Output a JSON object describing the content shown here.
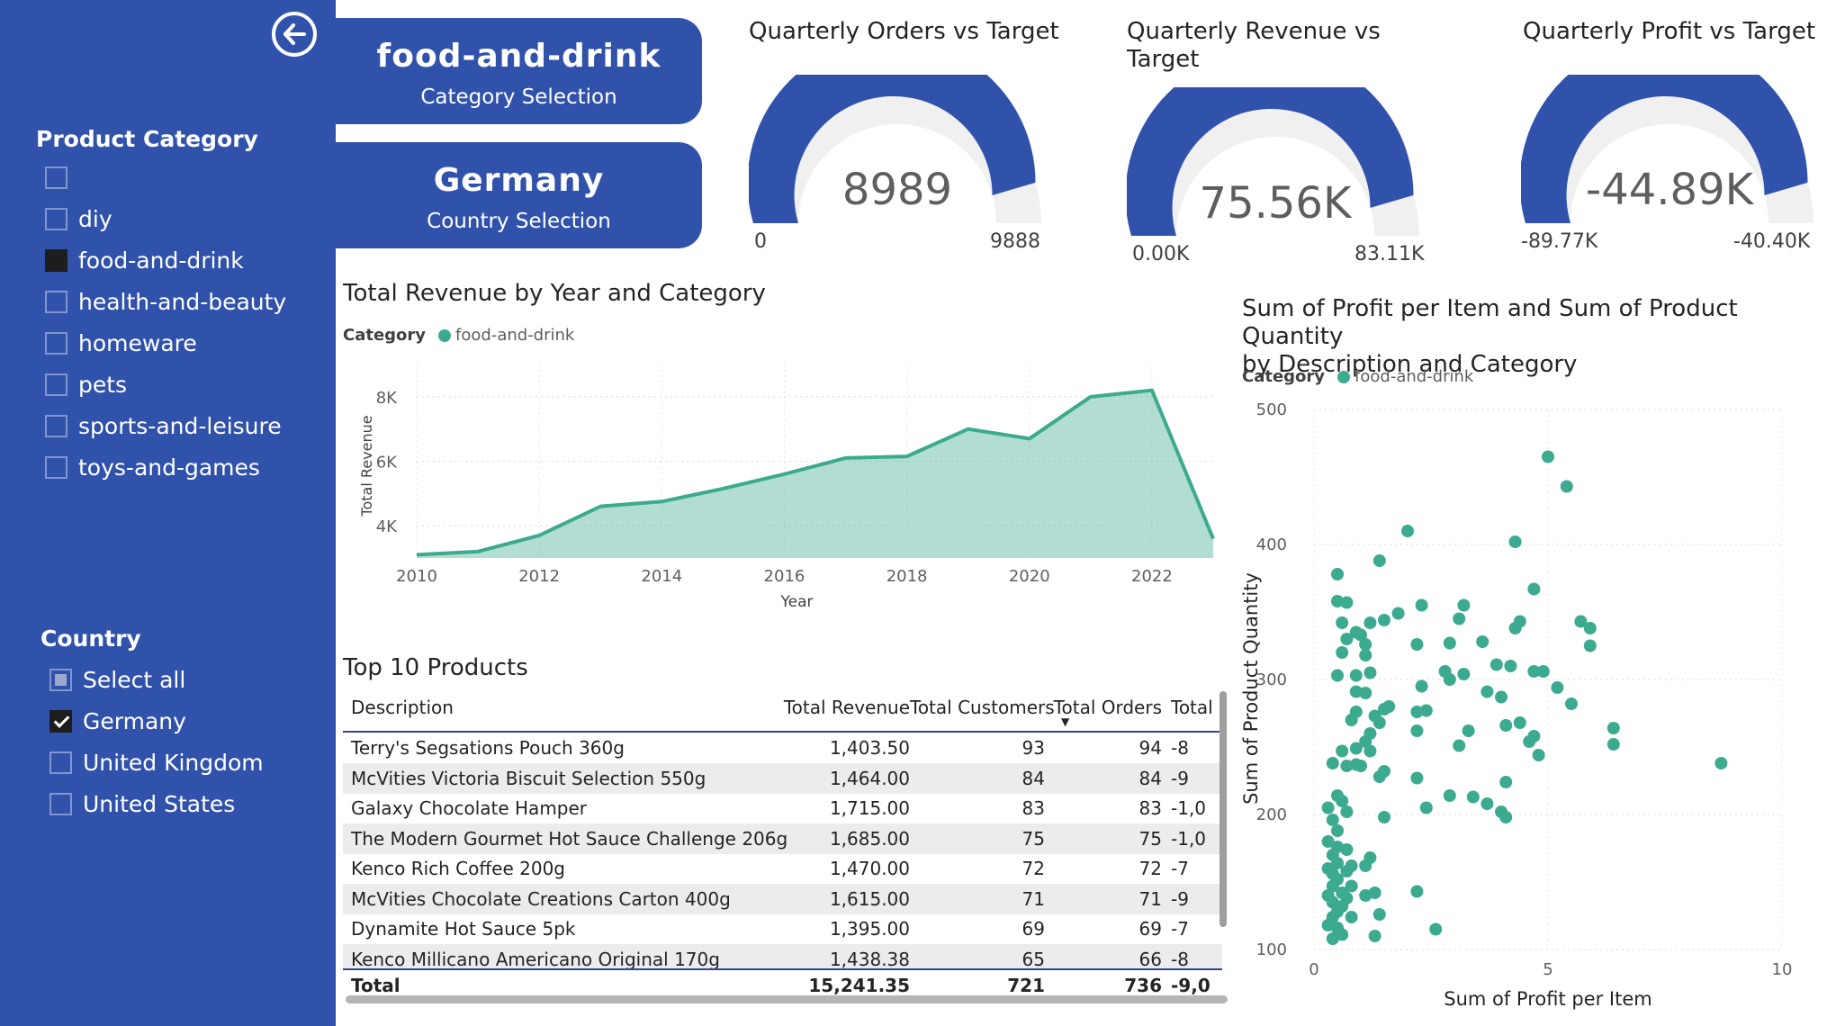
{
  "sidebar": {
    "product_category": {
      "title": "Product Category",
      "items": [
        {
          "label": "",
          "state": "empty"
        },
        {
          "label": "diy",
          "state": "empty"
        },
        {
          "label": "food-and-drink",
          "state": "filled"
        },
        {
          "label": "health-and-beauty",
          "state": "empty"
        },
        {
          "label": "homeware",
          "state": "empty"
        },
        {
          "label": "pets",
          "state": "empty"
        },
        {
          "label": "sports-and-leisure",
          "state": "empty"
        },
        {
          "label": "toys-and-games",
          "state": "empty"
        }
      ]
    },
    "country": {
      "title": "Country",
      "items": [
        {
          "label": "Select all",
          "state": "partial"
        },
        {
          "label": "Germany",
          "state": "checked"
        },
        {
          "label": "United Kingdom",
          "state": "empty"
        },
        {
          "label": "United States",
          "state": "empty"
        }
      ]
    }
  },
  "cards": {
    "category": {
      "value": "food-and-drink",
      "caption": "Category Selection"
    },
    "country": {
      "value": "Germany",
      "caption": "Country Selection"
    }
  },
  "gauges": [
    {
      "title": "Quarterly Orders vs Target",
      "value": "8989",
      "min": "0",
      "max": "9888",
      "fraction": 0.909
    },
    {
      "title": "Quarterly Revenue vs Target",
      "value": "75.56K",
      "min": "0.00K",
      "max": "83.11K",
      "fraction": 0.909
    },
    {
      "title": "Quarterly Profit vs Target",
      "value": "-44.89K",
      "min": "-89.77K",
      "max": "-40.40K",
      "fraction": 0.909
    }
  ],
  "colors": {
    "brand": "#3052ab",
    "teal": "#3caa8e",
    "track": "#f0f0f0"
  },
  "revenue_chart": {
    "title": "Total Revenue by Year and Category",
    "legend_title": "Category",
    "legend_item": "food-and-drink"
  },
  "scatter_chart": {
    "title_line1": "Sum of Profit per Item and Sum of Product Quantity",
    "title_line2": "by Description and Category",
    "legend_title": "Category",
    "legend_item": "food-and-drink"
  },
  "chart_data": [
    {
      "type": "area",
      "title": "Total Revenue by Year and Category",
      "xlabel": "Year",
      "ylabel": "Total Revenue",
      "x": [
        2010,
        2011,
        2012,
        2013,
        2014,
        2015,
        2016,
        2017,
        2018,
        2019,
        2020,
        2021,
        2022,
        2023
      ],
      "series": [
        {
          "name": "food-and-drink",
          "values": [
            3100,
            3200,
            3700,
            4600,
            4750,
            5150,
            5600,
            6100,
            6150,
            7000,
            6700,
            8000,
            8200,
            3600
          ]
        }
      ],
      "xticks": [
        "2010",
        "2012",
        "2014",
        "2016",
        "2018",
        "2020",
        "2022"
      ],
      "yticks": [
        "4K",
        "6K",
        "8K"
      ],
      "xlim": [
        2010,
        2023
      ],
      "ylim": [
        3000,
        9000
      ],
      "grid": true,
      "legend": "top-left"
    },
    {
      "type": "scatter",
      "title": "Sum of Profit per Item and Sum of Product Quantity by Description and Category",
      "xlabel": "Sum of Profit per Item",
      "ylabel": "Sum of Product Quantity",
      "xticks": [
        "0",
        "5",
        "10"
      ],
      "yticks": [
        "100",
        "200",
        "300",
        "400",
        "500"
      ],
      "xlim": [
        0,
        10
      ],
      "ylim": [
        100,
        500
      ],
      "grid": true,
      "legend": "top-left",
      "series": [
        {
          "name": "food-and-drink",
          "points": [
            [
              5.0,
              465
            ],
            [
              5.4,
              443
            ],
            [
              2.0,
              410
            ],
            [
              4.3,
              402
            ],
            [
              1.4,
              388
            ],
            [
              0.5,
              378
            ],
            [
              4.7,
              367
            ],
            [
              0.5,
              358
            ],
            [
              0.7,
              357
            ],
            [
              2.3,
              355
            ],
            [
              3.2,
              355
            ],
            [
              1.8,
              349
            ],
            [
              5.7,
              343
            ],
            [
              4.4,
              343
            ],
            [
              0.6,
              342
            ],
            [
              1.2,
              342
            ],
            [
              3.1,
              345
            ],
            [
              1.5,
              344
            ],
            [
              4.3,
              338
            ],
            [
              0.9,
              335
            ],
            [
              5.9,
              338
            ],
            [
              0.7,
              330
            ],
            [
              1.0,
              333
            ],
            [
              2.2,
              326
            ],
            [
              2.9,
              327
            ],
            [
              3.6,
              328
            ],
            [
              1.1,
              326
            ],
            [
              5.9,
              325
            ],
            [
              0.6,
              320
            ],
            [
              1.1,
              318
            ],
            [
              3.9,
              311
            ],
            [
              2.8,
              306
            ],
            [
              3.2,
              304
            ],
            [
              4.2,
              310
            ],
            [
              4.7,
              306
            ],
            [
              4.9,
              306
            ],
            [
              0.5,
              303
            ],
            [
              0.9,
              303
            ],
            [
              1.2,
              305
            ],
            [
              2.9,
              300
            ],
            [
              2.3,
              295
            ],
            [
              5.2,
              294
            ],
            [
              3.7,
              291
            ],
            [
              1.1,
              290
            ],
            [
              0.9,
              291
            ],
            [
              4.0,
              287
            ],
            [
              5.5,
              282
            ],
            [
              1.6,
              280
            ],
            [
              0.9,
              276
            ],
            [
              1.5,
              278
            ],
            [
              2.2,
              276
            ],
            [
              2.4,
              277
            ],
            [
              1.3,
              273
            ],
            [
              0.8,
              270
            ],
            [
              1.4,
              268
            ],
            [
              4.4,
              268
            ],
            [
              4.1,
              266
            ],
            [
              3.3,
              262
            ],
            [
              2.2,
              262
            ],
            [
              1.2,
              260
            ],
            [
              4.7,
              258
            ],
            [
              1.1,
              254
            ],
            [
              4.6,
              254
            ],
            [
              6.4,
              264
            ],
            [
              6.4,
              252
            ],
            [
              8.7,
              238
            ],
            [
              0.9,
              249
            ],
            [
              0.6,
              247
            ],
            [
              1.2,
              247
            ],
            [
              0.4,
              238
            ],
            [
              0.9,
              237
            ],
            [
              0.7,
              236
            ],
            [
              1.0,
              236
            ],
            [
              1.5,
              232
            ],
            [
              3.1,
              251
            ],
            [
              4.8,
              244
            ],
            [
              2.2,
              227
            ],
            [
              1.4,
              228
            ],
            [
              4.1,
              224
            ],
            [
              3.4,
              213
            ],
            [
              2.4,
              205
            ],
            [
              3.7,
              208
            ],
            [
              4.0,
              202
            ],
            [
              4.1,
              198
            ],
            [
              2.9,
              214
            ],
            [
              1.5,
              198
            ],
            [
              0.5,
              214
            ],
            [
              0.6,
              210
            ],
            [
              0.3,
              205
            ],
            [
              0.7,
              202
            ],
            [
              0.4,
              196
            ],
            [
              0.5,
              188
            ],
            [
              0.3,
              180
            ],
            [
              0.5,
              176
            ],
            [
              0.7,
              174
            ],
            [
              0.4,
              170
            ],
            [
              0.5,
              164
            ],
            [
              0.8,
              162
            ],
            [
              0.3,
              160
            ],
            [
              0.4,
              156
            ],
            [
              0.7,
              158
            ],
            [
              0.5,
              152
            ],
            [
              0.4,
              147
            ],
            [
              0.8,
              147
            ],
            [
              0.3,
              140
            ],
            [
              0.6,
              142
            ],
            [
              0.7,
              138
            ],
            [
              0.4,
              135
            ],
            [
              0.6,
              132
            ],
            [
              0.5,
              128
            ],
            [
              0.4,
              124
            ],
            [
              0.8,
              124
            ],
            [
              0.3,
              118
            ],
            [
              0.5,
              116
            ],
            [
              1.2,
              168
            ],
            [
              1.1,
              162
            ],
            [
              1.3,
              142
            ],
            [
              1.1,
              140
            ],
            [
              2.2,
              143
            ],
            [
              1.4,
              126
            ],
            [
              0.6,
              111
            ],
            [
              1.3,
              110
            ],
            [
              0.4,
              108
            ],
            [
              2.6,
              115
            ]
          ]
        }
      ]
    }
  ],
  "table": {
    "title": "Top 10 Products",
    "headers": [
      "Description",
      "Total Revenue",
      "Total Customers",
      "Total Orders",
      "Total"
    ],
    "sort_indicator": "▼",
    "rows": [
      [
        "Terry's Segsations Pouch 360g",
        "1,403.50",
        "93",
        "94",
        "-8"
      ],
      [
        "McVities Victoria Biscuit Selection 550g",
        "1,464.00",
        "84",
        "84",
        "-9"
      ],
      [
        "Galaxy Chocolate Hamper",
        "1,715.00",
        "83",
        "83",
        "-1,0"
      ],
      [
        "The Modern Gourmet Hot Sauce Challenge 206g",
        "1,685.00",
        "75",
        "75",
        "-1,0"
      ],
      [
        "Kenco Rich Coffee 200g",
        "1,470.00",
        "72",
        "72",
        "-7"
      ],
      [
        "McVities Chocolate Creations Carton 400g",
        "1,615.00",
        "71",
        "71",
        "-9"
      ],
      [
        "Dynamite Hot Sauce 5pk",
        "1,395.00",
        "69",
        "69",
        "-7"
      ],
      [
        "Kenco Millicano Americano Original 170g",
        "1,438.38",
        "65",
        "66",
        "-8"
      ]
    ],
    "total": [
      "Total",
      "15,241.35",
      "721",
      "736",
      "-9,0"
    ]
  }
}
